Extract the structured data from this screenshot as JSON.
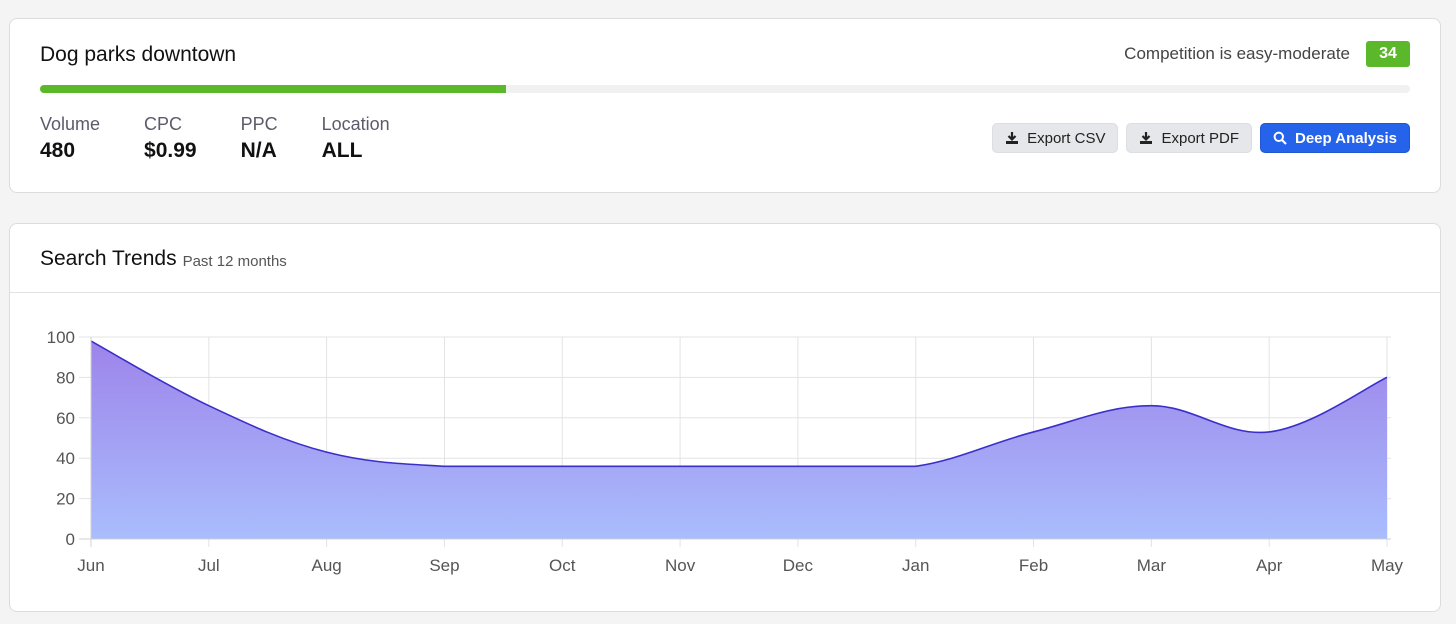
{
  "keyword": {
    "title": "Dog parks downtown",
    "competition_text": "Competition is easy-moderate",
    "score": "34",
    "score_fraction": 0.34,
    "accent_color": "#5bb82b",
    "metrics": [
      {
        "label": "Volume",
        "value": "480"
      },
      {
        "label": "CPC",
        "value": "$0.99"
      },
      {
        "label": "PPC",
        "value": "N/A"
      },
      {
        "label": "Location",
        "value": "ALL"
      }
    ],
    "actions": {
      "export_csv": "Export CSV",
      "export_pdf": "Export PDF",
      "deep_analysis": "Deep Analysis",
      "download_icon": "download-icon",
      "search_icon": "search-icon",
      "primary_color": "#2563eb"
    }
  },
  "trends": {
    "title": "Search Trends",
    "subtitle": "Past 12 months"
  },
  "chart_data": {
    "type": "area",
    "categories": [
      "Jun",
      "Jul",
      "Aug",
      "Sep",
      "Oct",
      "Nov",
      "Dec",
      "Jan",
      "Feb",
      "Mar",
      "Apr",
      "May"
    ],
    "values": [
      98,
      66,
      43,
      36,
      36,
      36,
      36,
      36,
      53,
      66,
      53,
      80
    ],
    "yticks": [
      0,
      20,
      40,
      60,
      80,
      100
    ],
    "ylim": [
      0,
      100
    ],
    "grid": true,
    "line_color": "#3b2fc9",
    "fill_top_color": "#9d84ea",
    "fill_bottom_color": "#a9bdfd"
  }
}
